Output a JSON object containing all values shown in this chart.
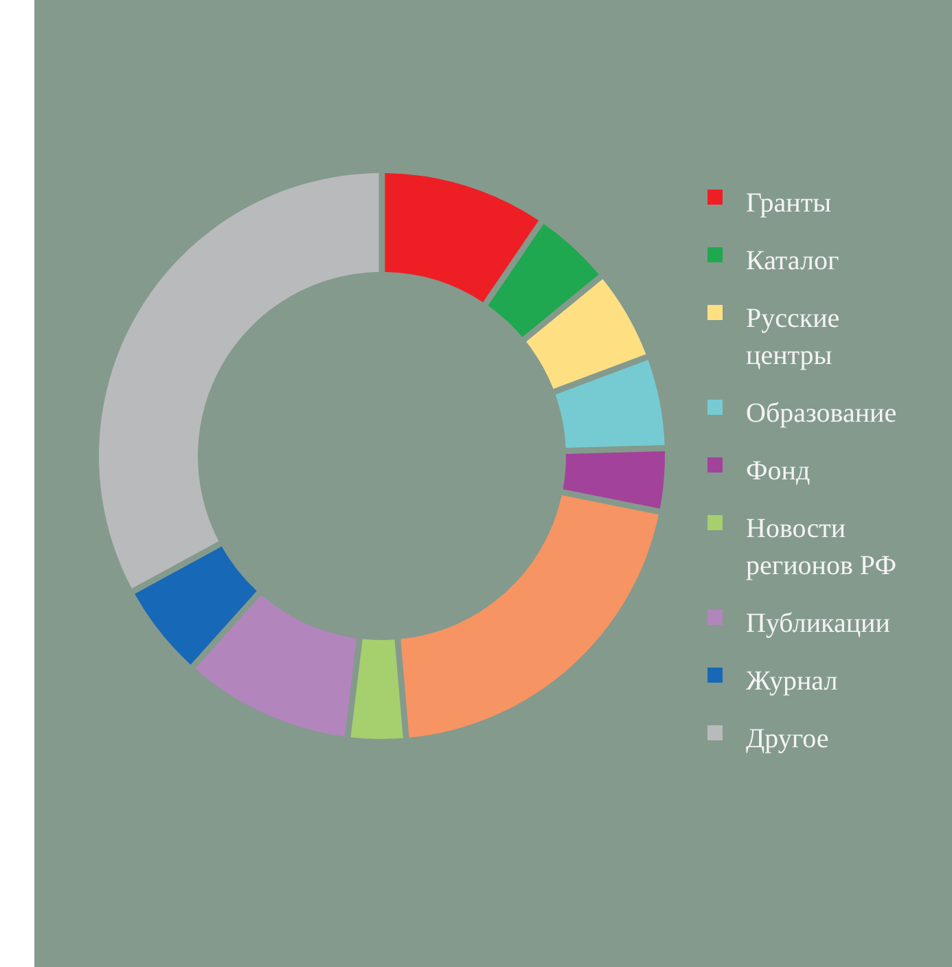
{
  "chart_data": {
    "type": "donut",
    "categories": [
      "Гранты",
      "Каталог",
      "Русские центры",
      "Образование",
      "Фонд",
      null,
      "Новости регионов РФ",
      "Публикации",
      "Журнал",
      "Другое"
    ],
    "values": [
      9.5,
      4.4,
      5.1,
      5.1,
      3.4,
      20.8,
      3.1,
      9.7,
      5.3,
      33.6
    ],
    "colors": [
      "#ed1f24",
      "#1fa84f",
      "#fee083",
      "#76cbd2",
      "#a2429a",
      "#f69463",
      "#a6cf6e",
      "#b385bd",
      "#1768b6",
      "#b9babc"
    ],
    "legend": "right"
  }
}
